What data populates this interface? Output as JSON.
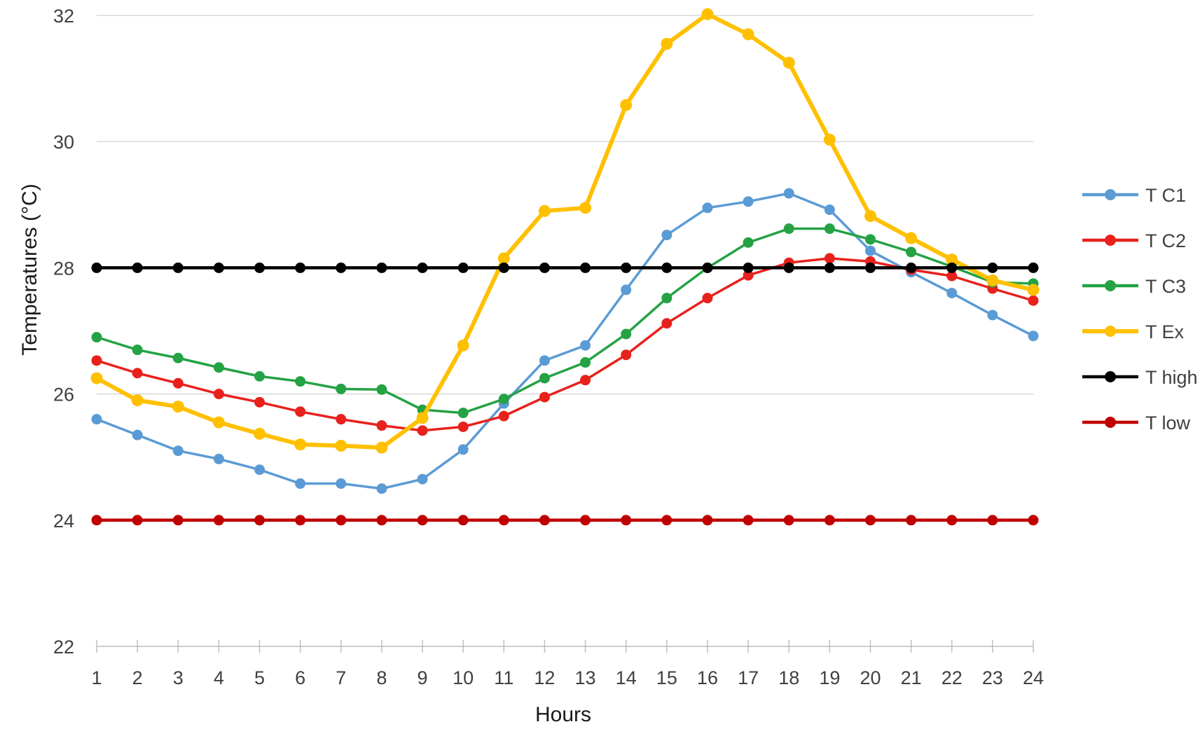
{
  "chart_data": {
    "type": "line",
    "xlabel": "Hours",
    "ylabel": "Temperatures (°C)",
    "x": [
      1,
      2,
      3,
      4,
      5,
      6,
      7,
      8,
      9,
      10,
      11,
      12,
      13,
      14,
      15,
      16,
      17,
      18,
      19,
      20,
      21,
      22,
      23,
      24
    ],
    "x_tick_labels": [
      "1",
      "2",
      "3",
      "4",
      "5",
      "6",
      "7",
      "8",
      "9",
      "10",
      "11",
      "12",
      "13",
      "14",
      "15",
      "16",
      "17",
      "18",
      "19",
      "20",
      "21",
      "22",
      "23",
      "24"
    ],
    "ylim": [
      22,
      32
    ],
    "y_ticks": [
      22,
      24,
      26,
      28,
      30,
      32
    ],
    "y_tick_labels": [
      "22",
      "24",
      "26",
      "28",
      "30",
      "32"
    ],
    "grid": true,
    "legend_position": "right",
    "series": [
      {
        "name": "T C1",
        "color": "#5b9bd5",
        "values": [
          25.6,
          25.35,
          25.1,
          24.97,
          24.8,
          24.58,
          24.58,
          24.5,
          24.65,
          25.12,
          25.85,
          26.53,
          26.77,
          27.65,
          28.52,
          28.95,
          29.05,
          29.18,
          28.92,
          28.27,
          27.93,
          27.6,
          27.25,
          26.92
        ]
      },
      {
        "name": "T C2",
        "color": "#e8211c",
        "values": [
          26.53,
          26.33,
          26.17,
          26.0,
          25.87,
          25.72,
          25.6,
          25.5,
          25.42,
          25.48,
          25.65,
          25.95,
          26.22,
          26.62,
          27.12,
          27.52,
          27.88,
          28.08,
          28.15,
          28.1,
          27.97,
          27.87,
          27.67,
          27.48
        ]
      },
      {
        "name": "T C3",
        "color": "#25a244",
        "values": [
          26.9,
          26.7,
          26.57,
          26.42,
          26.28,
          26.2,
          26.08,
          26.07,
          25.75,
          25.7,
          25.92,
          26.25,
          26.5,
          26.95,
          27.52,
          28.0,
          28.4,
          28.62,
          28.62,
          28.45,
          28.25,
          28.02,
          27.77,
          27.75
        ]
      },
      {
        "name": "T Ex",
        "color": "#ffc000",
        "values": [
          26.25,
          25.9,
          25.8,
          25.55,
          25.37,
          25.2,
          25.18,
          25.15,
          25.62,
          26.77,
          28.15,
          28.9,
          28.95,
          30.58,
          31.55,
          32.02,
          31.7,
          31.25,
          30.03,
          28.82,
          28.47,
          28.13,
          27.8,
          27.65
        ]
      },
      {
        "name": "T high",
        "color": "#000000",
        "values": [
          28,
          28,
          28,
          28,
          28,
          28,
          28,
          28,
          28,
          28,
          28,
          28,
          28,
          28,
          28,
          28,
          28,
          28,
          28,
          28,
          28,
          28,
          28,
          28
        ]
      },
      {
        "name": "T low",
        "color": "#c00000",
        "values": [
          24,
          24,
          24,
          24,
          24,
          24,
          24,
          24,
          24,
          24,
          24,
          24,
          24,
          24,
          24,
          24,
          24,
          24,
          24,
          24,
          24,
          24,
          24,
          24
        ]
      }
    ]
  }
}
